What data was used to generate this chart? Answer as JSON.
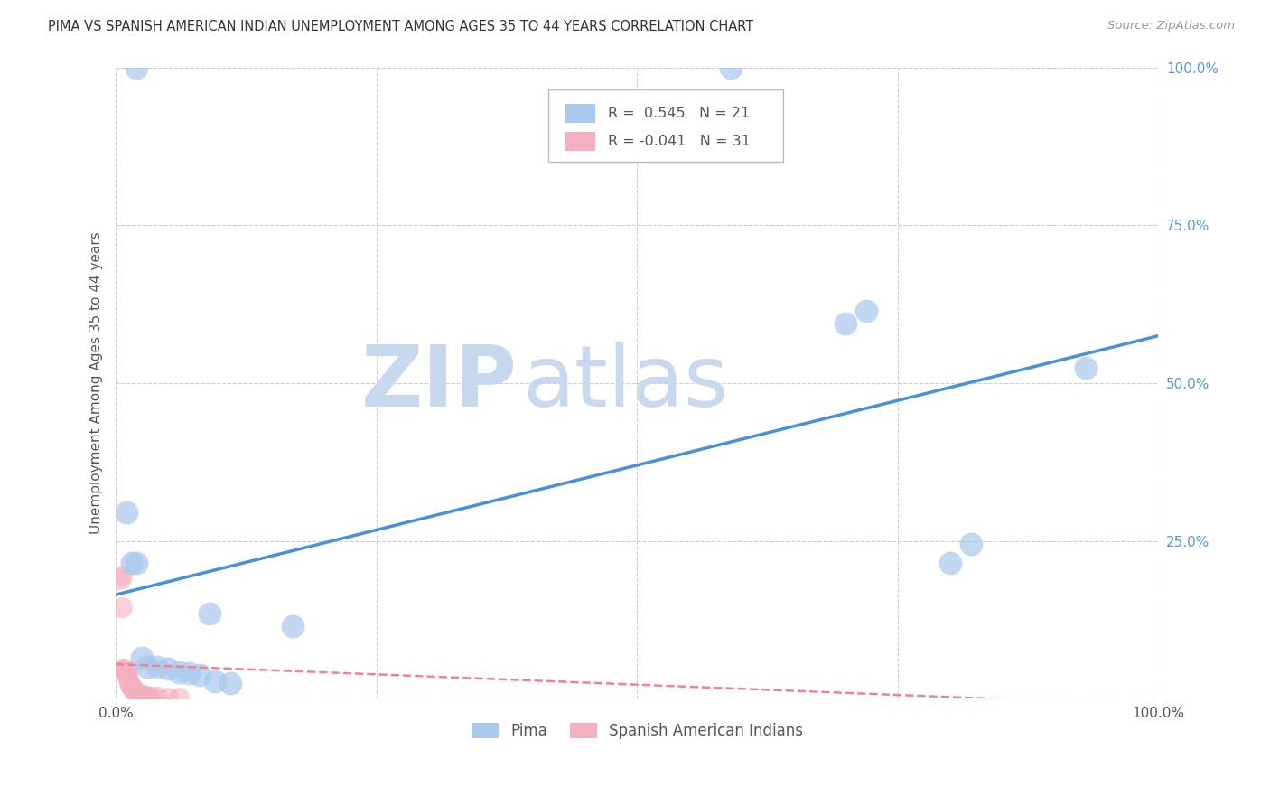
{
  "title": "PIMA VS SPANISH AMERICAN INDIAN UNEMPLOYMENT AMONG AGES 35 TO 44 YEARS CORRELATION CHART",
  "source": "Source: ZipAtlas.com",
  "ylabel": "Unemployment Among Ages 35 to 44 years",
  "legend_x": "Pima",
  "legend_y": "Spanish American Indians",
  "pima_R": "0.545",
  "pima_N": "21",
  "span_R": "-0.041",
  "span_N": "31",
  "background_color": "#ffffff",
  "grid_color": "#cccccc",
  "pima_color": "#a8c8ed",
  "span_color": "#f5b0bf",
  "pima_line_color": "#4a90d9",
  "span_line_color": "#f08098",
  "watermark_zip_color": "#c8d8ee",
  "watermark_atlas_color": "#c8d8ee",
  "ytick_color": "#5599dd",
  "pima_points": [
    [
      0.02,
      1.0
    ],
    [
      0.59,
      1.0
    ],
    [
      0.01,
      0.295
    ],
    [
      0.015,
      0.215
    ],
    [
      0.02,
      0.215
    ],
    [
      0.09,
      0.135
    ],
    [
      0.025,
      0.065
    ],
    [
      0.03,
      0.05
    ],
    [
      0.04,
      0.05
    ],
    [
      0.05,
      0.048
    ],
    [
      0.06,
      0.042
    ],
    [
      0.07,
      0.04
    ],
    [
      0.08,
      0.038
    ],
    [
      0.095,
      0.028
    ],
    [
      0.11,
      0.025
    ],
    [
      0.17,
      0.115
    ],
    [
      0.7,
      0.595
    ],
    [
      0.72,
      0.615
    ],
    [
      0.8,
      0.215
    ],
    [
      0.82,
      0.245
    ],
    [
      0.93,
      0.525
    ]
  ],
  "span_points": [
    [
      0.004,
      0.19
    ],
    [
      0.006,
      0.195
    ],
    [
      0.006,
      0.145
    ],
    [
      0.007,
      0.048
    ],
    [
      0.008,
      0.048
    ],
    [
      0.009,
      0.045
    ],
    [
      0.01,
      0.04
    ],
    [
      0.011,
      0.038
    ],
    [
      0.012,
      0.03
    ],
    [
      0.013,
      0.025
    ],
    [
      0.014,
      0.022
    ],
    [
      0.015,
      0.018
    ],
    [
      0.016,
      0.016
    ],
    [
      0.017,
      0.014
    ],
    [
      0.018,
      0.012
    ],
    [
      0.019,
      0.01
    ],
    [
      0.02,
      0.01
    ],
    [
      0.021,
      0.008
    ],
    [
      0.022,
      0.008
    ],
    [
      0.023,
      0.007
    ],
    [
      0.024,
      0.007
    ],
    [
      0.025,
      0.006
    ],
    [
      0.026,
      0.006
    ],
    [
      0.027,
      0.005
    ],
    [
      0.028,
      0.005
    ],
    [
      0.03,
      0.004
    ],
    [
      0.032,
      0.004
    ],
    [
      0.034,
      0.003
    ],
    [
      0.04,
      0.003
    ],
    [
      0.05,
      0.002
    ],
    [
      0.06,
      0.002
    ]
  ],
  "pima_line": [
    0.0,
    1.0,
    0.165,
    0.575
  ],
  "span_line": [
    0.0,
    1.0,
    0.055,
    -0.01
  ]
}
